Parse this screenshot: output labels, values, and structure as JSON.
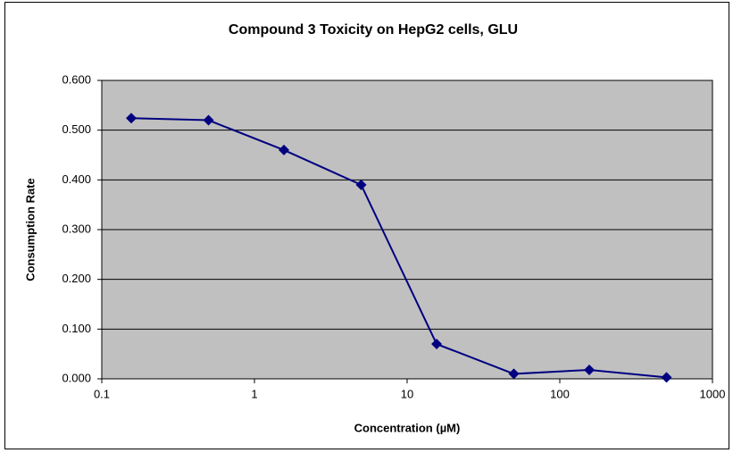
{
  "chart_data": {
    "type": "line",
    "title": "Compound 3 Toxicity on HepG2 cells, GLU",
    "x_label": "Concentration (µM)",
    "y_label": "Consumption Rate",
    "x": [
      0.156,
      0.5,
      1.56,
      5,
      15.6,
      50,
      156,
      500
    ],
    "series": [
      {
        "name": "GLU",
        "color": "#000080",
        "values": [
          0.524,
          0.52,
          0.46,
          0.39,
          0.07,
          0.01,
          0.018,
          0.003
        ]
      }
    ],
    "xlim": [
      0.1,
      1000
    ],
    "xticks": [
      0.1,
      1,
      10,
      100,
      1000
    ],
    "x_log": true,
    "ylim": [
      0,
      0.6
    ],
    "yticks": [
      {
        "value": 0,
        "label": "0.000"
      },
      {
        "value": 0.1,
        "label": "0.100"
      },
      {
        "value": 0.2,
        "label": "0.200"
      },
      {
        "value": 0.3,
        "label": "0.300"
      },
      {
        "value": 0.4,
        "label": "0.400"
      },
      {
        "value": 0.5,
        "label": "0.500"
      },
      {
        "value": 0.6,
        "label": "0.600"
      }
    ],
    "grid": true,
    "plot_background": "#c0c0c0"
  }
}
